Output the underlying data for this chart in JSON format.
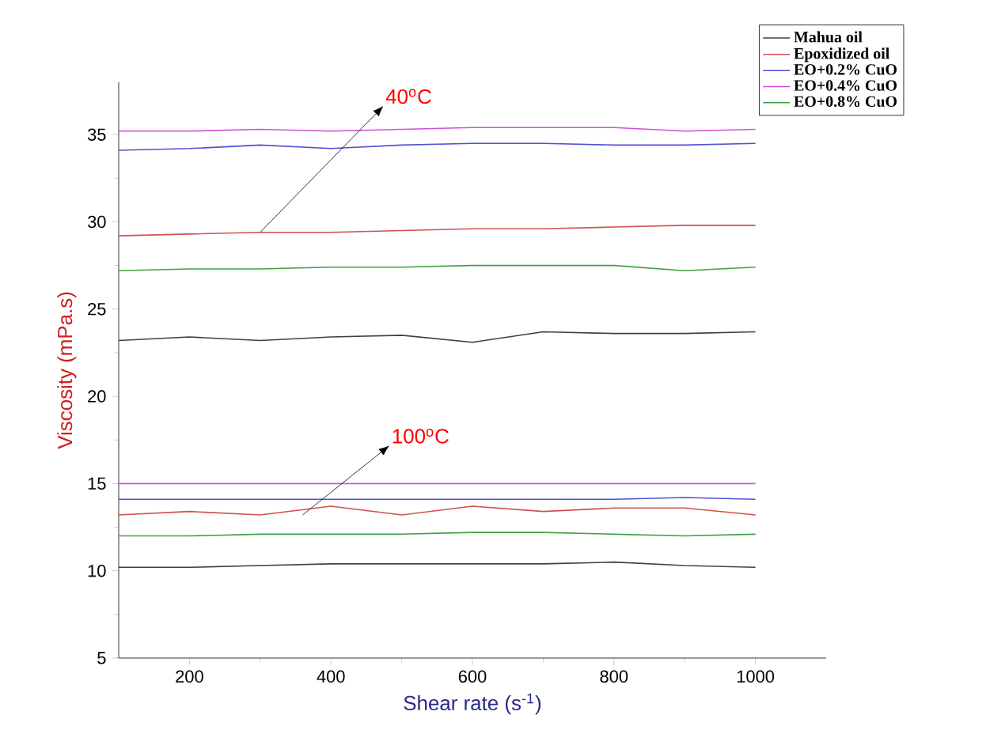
{
  "chart_data": {
    "type": "line",
    "xlabel": "Shear rate (s$^{-1}$)",
    "ylabel": "Viscosity (mPa.s)",
    "x": [
      100,
      200,
      300,
      400,
      500,
      600,
      700,
      800,
      900,
      1000
    ],
    "xlim": [
      100,
      1100
    ],
    "ylim": [
      5,
      38
    ],
    "xticks": [
      200,
      400,
      600,
      800,
      1000
    ],
    "yticks": [
      5,
      10,
      15,
      20,
      25,
      30,
      35
    ],
    "legend": "top right",
    "grid": false,
    "marker": "none",
    "line_style": "solid",
    "series": [
      {
        "name": "Mahua oil",
        "color": "#404040",
        "values": [
          23.2,
          23.4,
          23.2,
          23.4,
          23.5,
          23.1,
          23.7,
          23.6,
          23.6,
          23.7
        ]
      },
      {
        "name": "Epoxidized oil",
        "color": "#d05050",
        "values": [
          29.2,
          29.3,
          29.4,
          29.4,
          29.5,
          29.6,
          29.6,
          29.7,
          29.8,
          29.8
        ]
      },
      {
        "name": "EO+0.2% CuO",
        "color": "#5050d8",
        "values": [
          34.1,
          34.2,
          34.4,
          34.2,
          34.4,
          34.5,
          34.5,
          34.4,
          34.4,
          34.5
        ]
      },
      {
        "name": "EO+0.4% CuO",
        "color": "#d050d8",
        "values": [
          35.2,
          35.2,
          35.3,
          35.2,
          35.3,
          35.4,
          35.4,
          35.4,
          35.2,
          35.3
        ]
      },
      {
        "name": "EO+0.8% CuO",
        "color": "#40a040",
        "values": [
          27.2,
          27.3,
          27.3,
          27.4,
          27.4,
          27.5,
          27.5,
          27.5,
          27.2,
          27.4
        ]
      },
      {
        "color": "#404040",
        "values": [
          10.2,
          10.2,
          10.3,
          10.4,
          10.4,
          10.4,
          10.4,
          10.5,
          10.3,
          10.2
        ]
      },
      {
        "color": "#d05050",
        "values": [
          13.2,
          13.4,
          13.2,
          13.7,
          13.2,
          13.7,
          13.4,
          13.6,
          13.6,
          13.2
        ]
      },
      {
        "color": "#5050d8",
        "values": [
          14.1,
          14.1,
          14.1,
          14.1,
          14.1,
          14.1,
          14.1,
          14.1,
          14.2,
          14.1
        ]
      },
      {
        "color": "#d050d8",
        "values": [
          15.0,
          15.0,
          15.0,
          15.0,
          15.0,
          15.0,
          15.0,
          15.0,
          15.0,
          15.0
        ]
      },
      {
        "color": "#40a040",
        "values": [
          12.0,
          12.0,
          12.1,
          12.1,
          12.1,
          12.2,
          12.2,
          12.1,
          12.0,
          12.1
        ]
      }
    ],
    "annotations": [
      {
        "text": "40$^{o}$C",
        "x": 300,
        "y": 29.4
      },
      {
        "text": "100$^{o}$C",
        "x": 360,
        "y": 13.2
      }
    ]
  }
}
